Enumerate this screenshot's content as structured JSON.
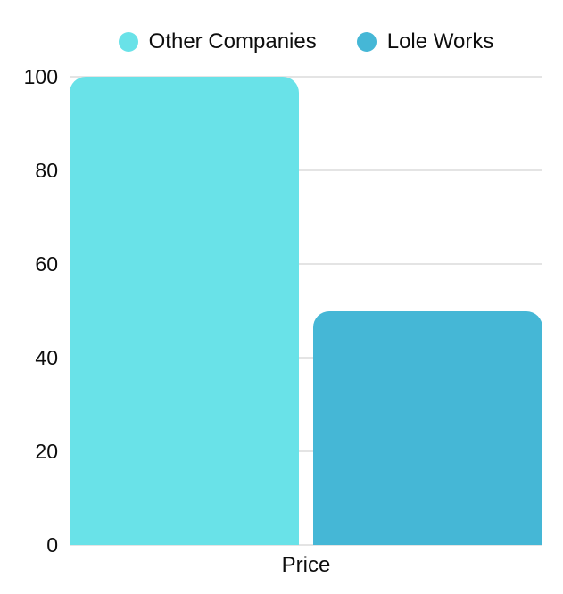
{
  "chart_data": {
    "type": "bar",
    "title": "",
    "categories": [
      "Price"
    ],
    "series": [
      {
        "name": "Other Companies",
        "color": "#69E2E8",
        "values": [
          100
        ]
      },
      {
        "name": "Lole Works",
        "color": "#45B7D6",
        "values": [
          50
        ]
      }
    ],
    "xlabel": "Price",
    "ylabel": "",
    "ylim": [
      0,
      100
    ],
    "yticks": [
      0,
      20,
      40,
      60,
      80,
      100
    ],
    "grid": true,
    "grid_color": "#E4E4E4",
    "background_color": "#FFFFFF",
    "text_color": "#0D0D0D",
    "legend_position": "top-center",
    "bar_corner_style": "rounded-top"
  }
}
